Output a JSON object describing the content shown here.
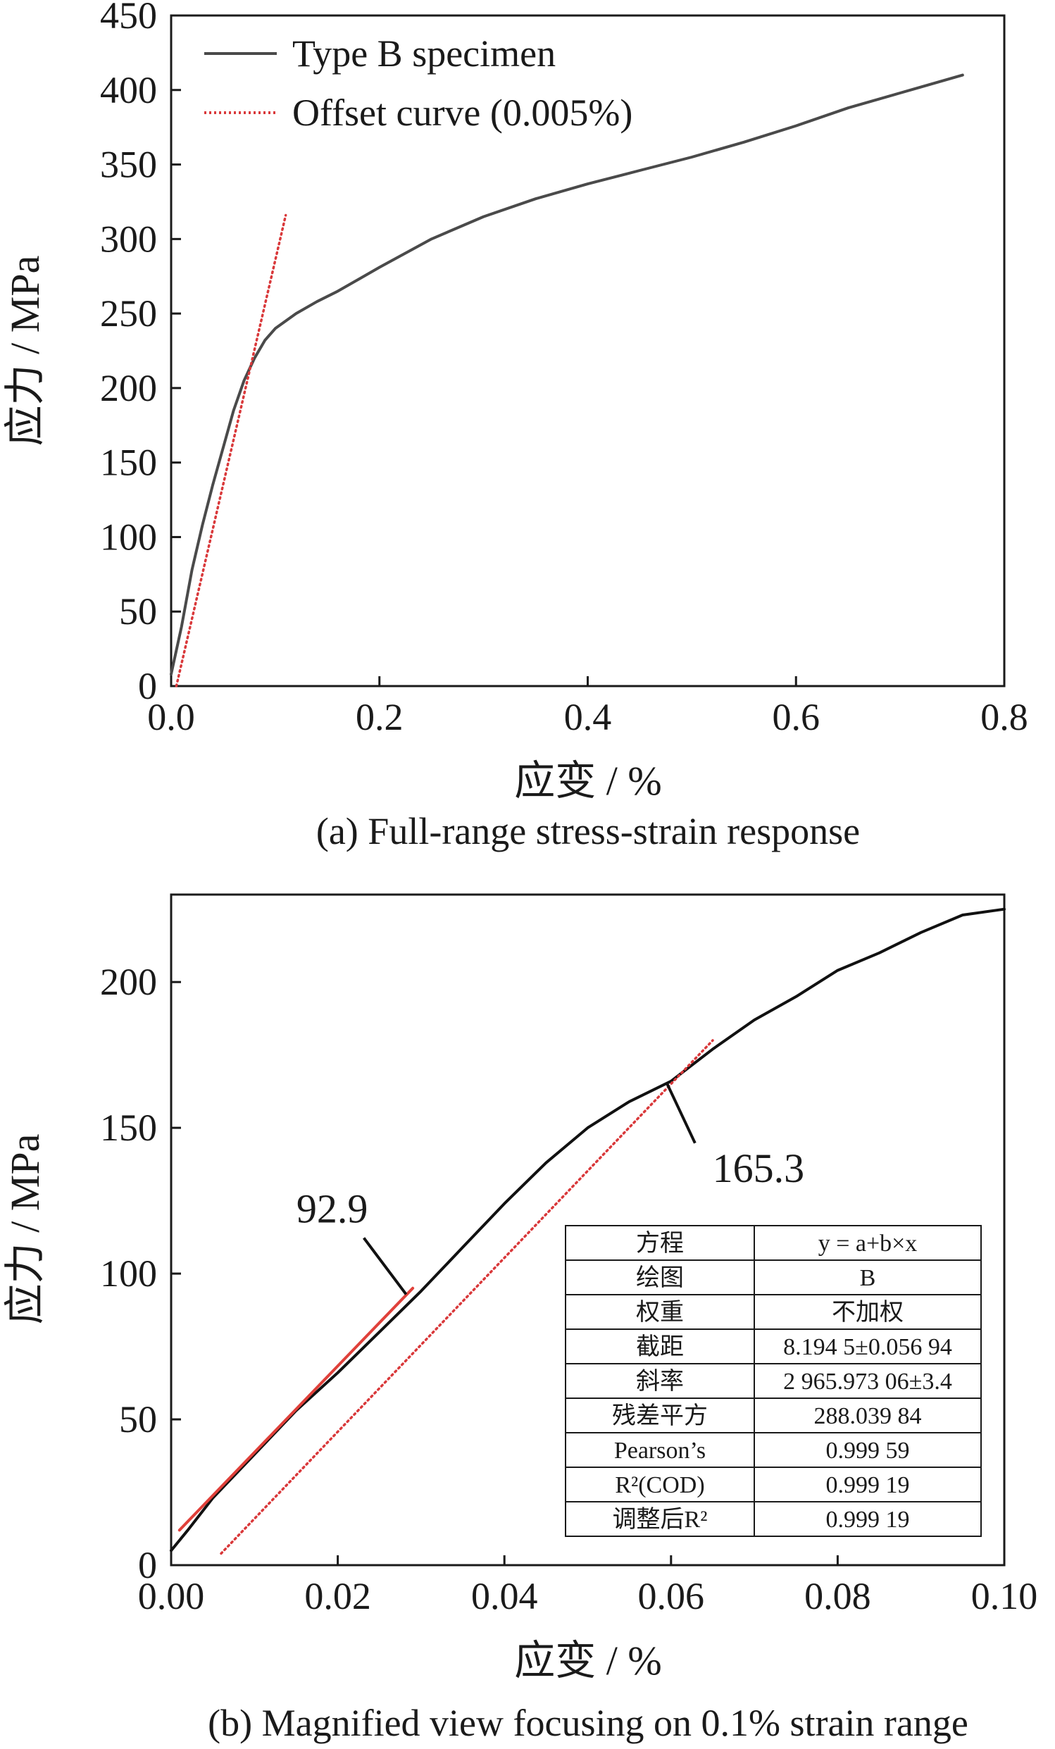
{
  "chart_data": [
    {
      "type": "line",
      "caption": "(a) Full-range stress-strain response",
      "xlabel": "应变 / %",
      "ylabel": "应力 / MPa",
      "xlim": [
        0.0,
        0.8
      ],
      "ylim": [
        0,
        450
      ],
      "xticks": [
        "0.0",
        "0.2",
        "0.4",
        "0.6",
        "0.8"
      ],
      "yticks": [
        "0",
        "50",
        "100",
        "150",
        "200",
        "250",
        "300",
        "350",
        "400",
        "450"
      ],
      "legend_position": "top-left",
      "series": [
        {
          "name": "Type B specimen",
          "color": "#4a4a4a",
          "style": "solid",
          "points": [
            [
              0.0,
              8
            ],
            [
              0.01,
              40
            ],
            [
              0.02,
              78
            ],
            [
              0.03,
              108
            ],
            [
              0.04,
              135
            ],
            [
              0.05,
              160
            ],
            [
              0.06,
              185
            ],
            [
              0.07,
              205
            ],
            [
              0.08,
              220
            ],
            [
              0.09,
              232
            ],
            [
              0.1,
              240
            ],
            [
              0.12,
              250
            ],
            [
              0.14,
              258
            ],
            [
              0.16,
              265
            ],
            [
              0.18,
              273
            ],
            [
              0.2,
              281
            ],
            [
              0.25,
              300
            ],
            [
              0.3,
              315
            ],
            [
              0.35,
              327
            ],
            [
              0.4,
              337
            ],
            [
              0.45,
              346
            ],
            [
              0.5,
              355
            ],
            [
              0.55,
              365
            ],
            [
              0.6,
              376
            ],
            [
              0.65,
              388
            ],
            [
              0.7,
              398
            ],
            [
              0.76,
              410
            ]
          ]
        },
        {
          "name": "Offset curve (0.005%)",
          "color": "#d9383a",
          "style": "dotted",
          "points": [
            [
              0.005,
              0
            ],
            [
              0.11,
              316
            ]
          ]
        }
      ]
    },
    {
      "type": "line",
      "caption": "(b) Magnified view focusing on 0.1% strain range",
      "xlabel": "应变 / %",
      "ylabel": "应力 / MPa",
      "xlim": [
        0.0,
        0.1
      ],
      "ylim": [
        0,
        230
      ],
      "xticks": [
        "0.00",
        "0.02",
        "0.04",
        "0.06",
        "0.08",
        "0.10"
      ],
      "yticks": [
        "0",
        "50",
        "100",
        "150",
        "200"
      ],
      "series": [
        {
          "color": "#111111",
          "style": "solid",
          "points": [
            [
              0.0,
              5
            ],
            [
              0.002,
              12
            ],
            [
              0.005,
              23
            ],
            [
              0.01,
              38
            ],
            [
              0.015,
              53
            ],
            [
              0.02,
              66
            ],
            [
              0.025,
              80
            ],
            [
              0.03,
              94
            ],
            [
              0.035,
              109
            ],
            [
              0.04,
              124
            ],
            [
              0.045,
              138
            ],
            [
              0.05,
              150
            ],
            [
              0.055,
              159
            ],
            [
              0.06,
              166
            ],
            [
              0.065,
              177
            ],
            [
              0.07,
              187
            ],
            [
              0.075,
              195
            ],
            [
              0.08,
              204
            ],
            [
              0.085,
              210
            ],
            [
              0.09,
              217
            ],
            [
              0.095,
              223
            ],
            [
              0.1,
              225
            ]
          ]
        },
        {
          "color": "#e0403a",
          "style": "solid",
          "points": [
            [
              0.001,
              12
            ],
            [
              0.029,
              95
            ]
          ]
        },
        {
          "color": "#d9383a",
          "style": "dotted",
          "points": [
            [
              0.006,
              4
            ],
            [
              0.065,
              180
            ]
          ]
        }
      ],
      "annotations": [
        {
          "text": "92.9",
          "point": [
            0.0282,
            92.9
          ]
        },
        {
          "text": "165.3",
          "point": [
            0.0595,
            165.3
          ]
        }
      ],
      "fit_table": [
        [
          "方程",
          "y = a+b×x"
        ],
        [
          "绘图",
          "B"
        ],
        [
          "权重",
          "不加权"
        ],
        [
          "截距",
          "8.194 5±0.056 94"
        ],
        [
          "斜率",
          "2 965.973 06±3.4"
        ],
        [
          "残差平方",
          "288.039 84"
        ],
        [
          "Pearson’s",
          "0.999 59"
        ],
        [
          "R²(COD)",
          "0.999 19"
        ],
        [
          "调整后R²",
          "0.999 19"
        ]
      ]
    }
  ]
}
